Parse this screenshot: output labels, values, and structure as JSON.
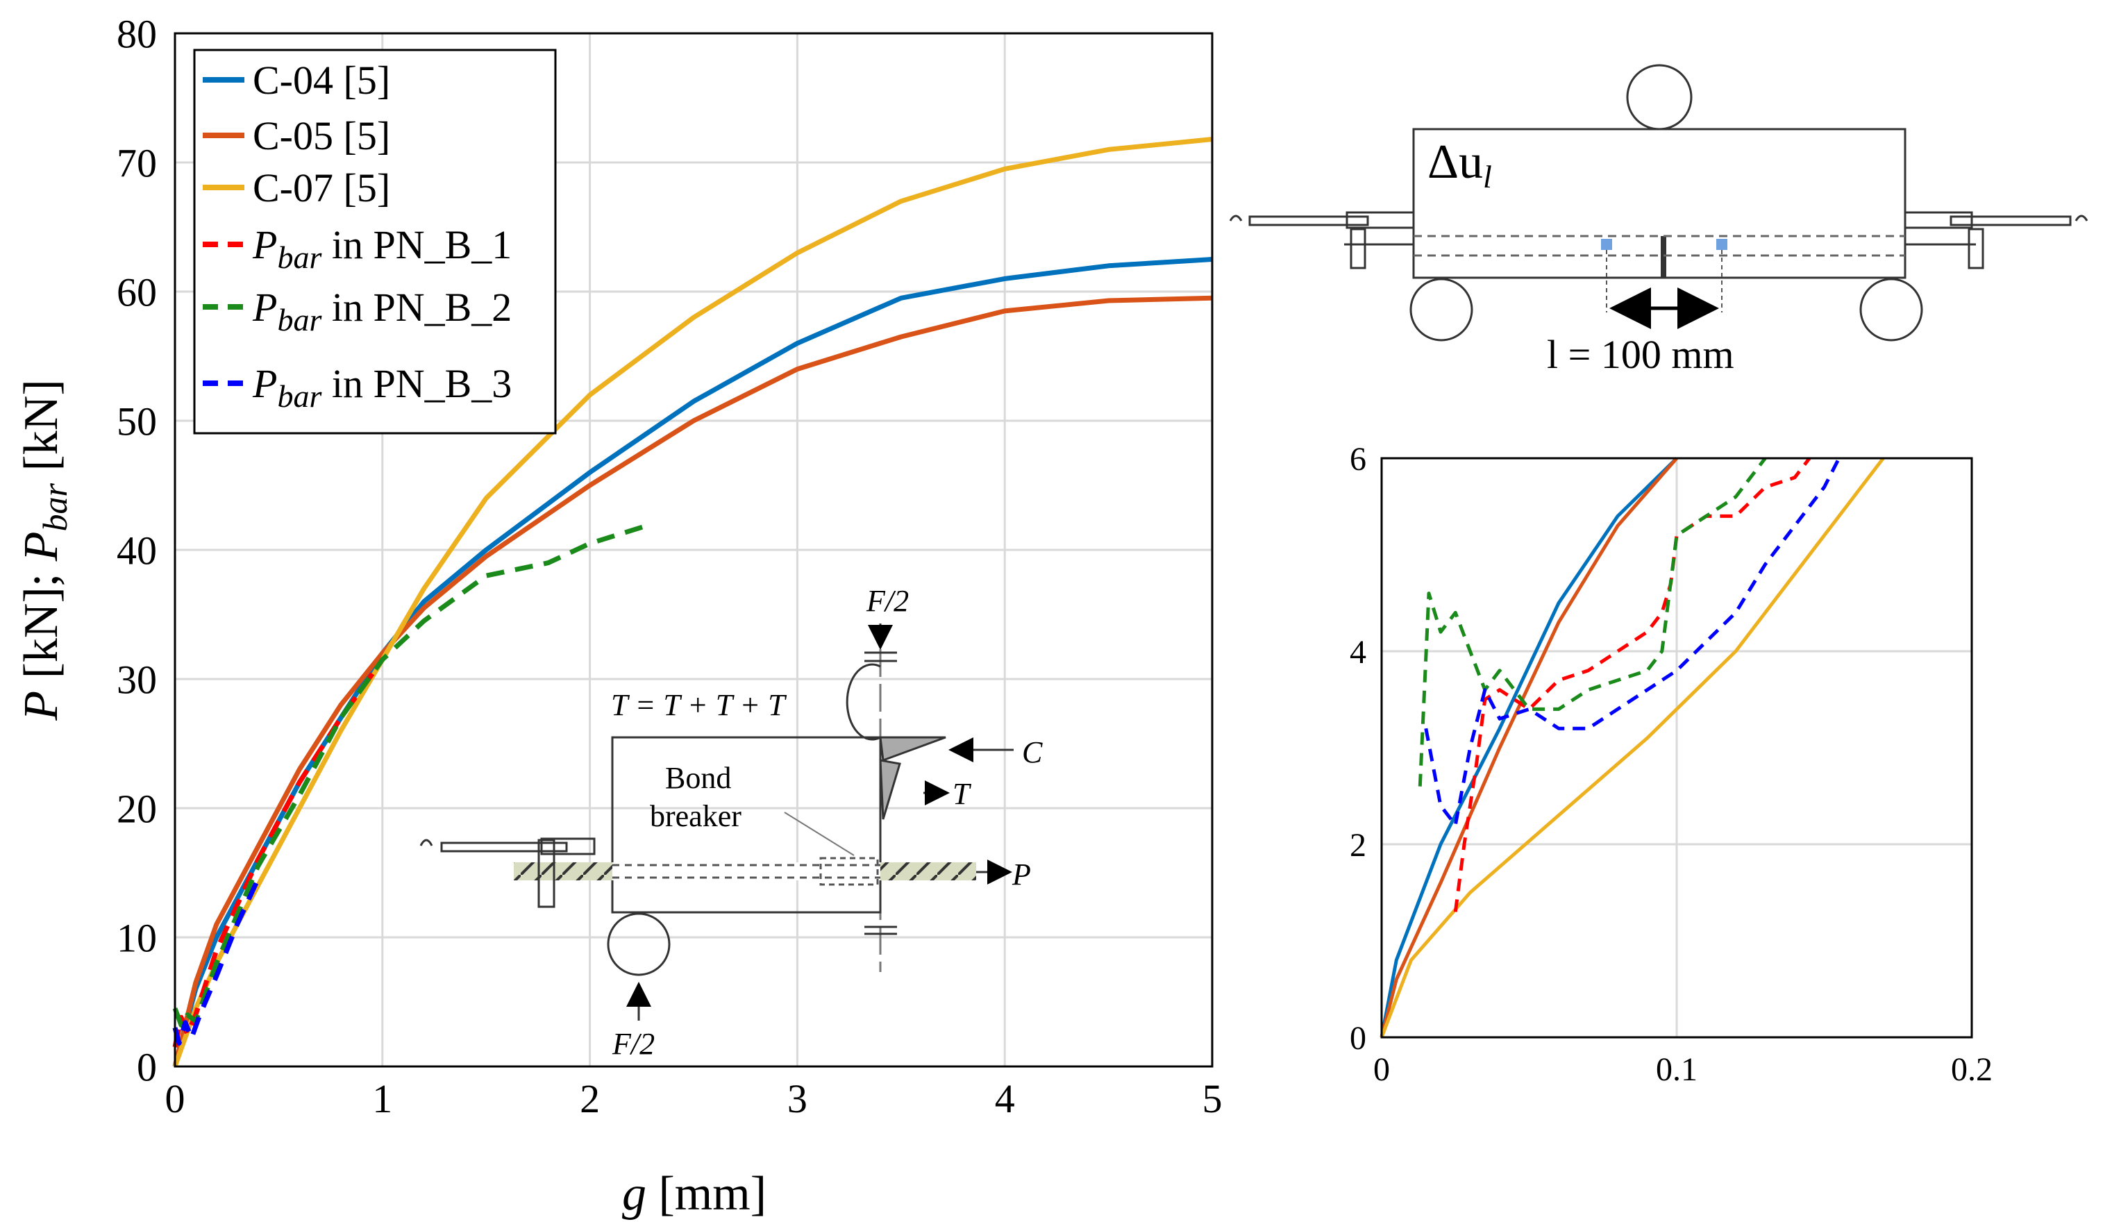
{
  "chart_data": [
    {
      "type": "line",
      "panel": "main",
      "xlabel": "g [mm]",
      "ylabel": "P [kN]; P_bar [kN]",
      "xlim": [
        0,
        5
      ],
      "ylim": [
        0,
        80
      ],
      "xticks": [
        "0",
        "1",
        "2",
        "3",
        "4",
        "5"
      ],
      "yticks": [
        "0",
        "10",
        "20",
        "30",
        "40",
        "50",
        "60",
        "70",
        "80"
      ],
      "grid": true,
      "legend_position": "top-left",
      "legend": [
        "C-04 [5]",
        "C-05 [5]",
        "C-07 [5]",
        "P_bar in PN_B_1",
        "P_bar in PN_B_2",
        "P_bar in PN_B_3"
      ],
      "series": [
        {
          "name": "C-04 [5]",
          "color": "#0072bd",
          "style": "solid",
          "x": [
            0,
            0.1,
            0.2,
            0.4,
            0.6,
            0.8,
            1.0,
            1.2,
            1.5,
            2.0,
            2.5,
            3.0,
            3.5,
            4.0,
            4.5,
            5.0
          ],
          "y": [
            0,
            6,
            10,
            16,
            22,
            27,
            32,
            36,
            40,
            46,
            51.5,
            56,
            59.5,
            61,
            62,
            62.5
          ]
        },
        {
          "name": "C-05 [5]",
          "color": "#d95319",
          "style": "solid",
          "x": [
            0,
            0.1,
            0.2,
            0.4,
            0.6,
            0.8,
            1.0,
            1.2,
            1.5,
            2.0,
            2.5,
            3.0,
            3.5,
            4.0,
            4.5,
            5.0
          ],
          "y": [
            0,
            6.5,
            11,
            17,
            23,
            28,
            32,
            35.5,
            39.5,
            45,
            50,
            54,
            56.5,
            58.5,
            59.3,
            59.5
          ]
        },
        {
          "name": "C-07 [5]",
          "color": "#edb120",
          "style": "solid",
          "x": [
            0,
            0.1,
            0.2,
            0.4,
            0.6,
            0.8,
            1.0,
            1.2,
            1.5,
            2.0,
            2.5,
            3.0,
            3.5,
            4.0,
            4.5,
            5.0
          ],
          "y": [
            0,
            4.5,
            8,
            14,
            20,
            26,
            31.5,
            37,
            44,
            52,
            58,
            63,
            67,
            69.5,
            71,
            71.8
          ]
        },
        {
          "name": "P_bar in PN_B_1",
          "color": "#ff0000",
          "style": "dashed",
          "x": [
            0,
            0.03,
            0.06,
            0.1,
            0.2,
            0.4,
            0.6,
            0.8,
            1.0
          ],
          "y": [
            1.5,
            3.8,
            2.5,
            4,
            9,
            16,
            22,
            27,
            31.5
          ]
        },
        {
          "name": "P_bar in PN_B_2",
          "color": "#1a8a1a",
          "style": "dashed",
          "x": [
            0,
            0.03,
            0.06,
            0.1,
            0.2,
            0.4,
            0.6,
            0.8,
            1.0,
            1.2,
            1.5,
            1.8,
            2.0,
            2.3
          ],
          "y": [
            4.5,
            3.2,
            4,
            3.5,
            8,
            15.5,
            21,
            27,
            31.5,
            34.5,
            38,
            39,
            40.5,
            42
          ]
        },
        {
          "name": "P_bar in PN_B_3",
          "color": "#0000ff",
          "style": "dashed",
          "x": [
            0,
            0.02,
            0.05,
            0.08,
            0.12,
            0.2,
            0.3,
            0.4
          ],
          "y": [
            3,
            1.8,
            3.4,
            2.2,
            4,
            7,
            11,
            14.5
          ]
        }
      ]
    },
    {
      "type": "line",
      "panel": "inset-zoom",
      "xlim": [
        0,
        0.2
      ],
      "ylim": [
        0,
        6
      ],
      "xticks": [
        "0",
        "0.1",
        "0.2"
      ],
      "yticks": [
        "0",
        "2",
        "4",
        "6"
      ],
      "grid": true,
      "series": [
        {
          "name": "C-04 [5]",
          "color": "#0072bd",
          "style": "solid",
          "x": [
            0,
            0.005,
            0.02,
            0.04,
            0.06,
            0.08,
            0.1
          ],
          "y": [
            0,
            0.8,
            2,
            3.2,
            4.5,
            5.4,
            6
          ]
        },
        {
          "name": "C-05 [5]",
          "color": "#d95319",
          "style": "solid",
          "x": [
            0,
            0.005,
            0.02,
            0.04,
            0.06,
            0.08,
            0.1
          ],
          "y": [
            0,
            0.6,
            1.6,
            3,
            4.3,
            5.3,
            6
          ]
        },
        {
          "name": "C-07 [5]",
          "color": "#edb120",
          "style": "solid",
          "x": [
            0,
            0.01,
            0.03,
            0.06,
            0.09,
            0.12,
            0.15,
            0.17
          ],
          "y": [
            0,
            0.8,
            1.5,
            2.3,
            3.1,
            4,
            5.2,
            6
          ]
        },
        {
          "name": "P_bar in PN_B_1",
          "color": "#ff0000",
          "style": "dashed",
          "x": [
            0.025,
            0.028,
            0.032,
            0.035,
            0.04,
            0.05,
            0.06,
            0.07,
            0.08,
            0.09,
            0.095,
            0.098,
            0.1,
            0.11,
            0.12,
            0.13,
            0.14,
            0.145
          ],
          "y": [
            1.3,
            2,
            2.8,
            3.5,
            3.6,
            3.4,
            3.7,
            3.8,
            4,
            4.2,
            4.4,
            4.7,
            5.2,
            5.4,
            5.4,
            5.7,
            5.8,
            6
          ]
        },
        {
          "name": "P_bar in PN_B_2",
          "color": "#1a8a1a",
          "style": "dashed",
          "x": [
            0.013,
            0.016,
            0.02,
            0.025,
            0.03,
            0.035,
            0.04,
            0.05,
            0.06,
            0.07,
            0.08,
            0.09,
            0.095,
            0.1,
            0.11,
            0.12,
            0.13
          ],
          "y": [
            2.6,
            4.6,
            4.2,
            4.4,
            4,
            3.6,
            3.8,
            3.4,
            3.4,
            3.6,
            3.7,
            3.8,
            4,
            5.2,
            5.4,
            5.6,
            6
          ]
        },
        {
          "name": "P_bar in PN_B_3",
          "color": "#0000ff",
          "style": "dashed",
          "x": [
            0.015,
            0.02,
            0.025,
            0.03,
            0.035,
            0.04,
            0.05,
            0.06,
            0.07,
            0.08,
            0.09,
            0.1,
            0.11,
            0.12,
            0.13,
            0.14,
            0.15,
            0.155
          ],
          "y": [
            3.2,
            2.4,
            2.2,
            3,
            3.6,
            3.3,
            3.4,
            3.2,
            3.2,
            3.4,
            3.6,
            3.8,
            4.1,
            4.4,
            4.9,
            5.3,
            5.7,
            6
          ]
        }
      ]
    }
  ],
  "schematic_top": {
    "delta_label": "Δu",
    "delta_subscript": "l",
    "length_label": "l = 100 mm"
  },
  "schematic_inset": {
    "f_top": "F/2",
    "f_bottom": "F/2",
    "ti_equation": "T  = T  + T  + T",
    "c_label": "C",
    "ti_label": "T",
    "pbar_label": "P",
    "bond_line1": "Bond",
    "bond_line2": "breaker"
  }
}
